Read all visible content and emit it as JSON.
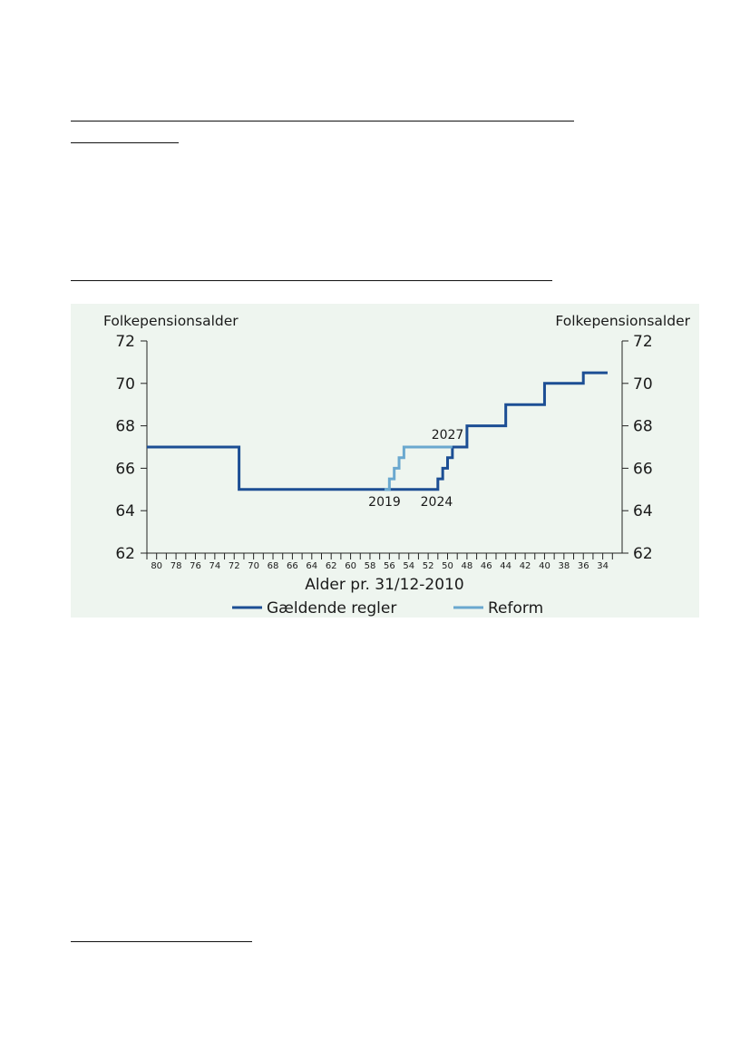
{
  "colors": {
    "background": "#eef5ef",
    "current_rules": "#1c4e94",
    "reform": "#6aa8cf"
  },
  "chart_data": {
    "type": "line",
    "ylabel_left": "Folkepensionsalder",
    "ylabel_right": "Folkepensionsalder",
    "xlabel": "Alder pr. 31/12-2010",
    "x_reversed": true,
    "xlim": [
      81,
      32
    ],
    "ylim": [
      62,
      72
    ],
    "yticks": [
      "62",
      "64",
      "66",
      "68",
      "70",
      "72"
    ],
    "xticks": [
      "80",
      "78",
      "76",
      "74",
      "72",
      "70",
      "68",
      "66",
      "64",
      "62",
      "60",
      "58",
      "56",
      "54",
      "52",
      "50",
      "48",
      "46",
      "44",
      "42",
      "40",
      "38",
      "36",
      "34"
    ],
    "series": [
      {
        "name": "Gældende regler",
        "step": true,
        "x": [
          81,
          71.5,
          51.5,
          51,
          50.5,
          50,
          49.5,
          48,
          44,
          40,
          36,
          33.5
        ],
        "y": [
          67,
          65,
          65,
          65.5,
          66,
          66.5,
          67,
          68,
          69,
          70,
          70.5,
          70.5
        ]
      },
      {
        "name": "Reform",
        "step": true,
        "x": [
          56.5,
          56,
          55.5,
          55,
          54.5,
          49.5
        ],
        "y": [
          65,
          65.5,
          66,
          66.5,
          67,
          67
        ]
      }
    ],
    "annotations": [
      {
        "text": "2019",
        "x": 56.5,
        "y": 65
      },
      {
        "text": "2024",
        "x": 51.5,
        "y": 65
      },
      {
        "text": "2027",
        "x": 50,
        "y": 67
      }
    ],
    "legend": {
      "position": "bottom"
    }
  }
}
